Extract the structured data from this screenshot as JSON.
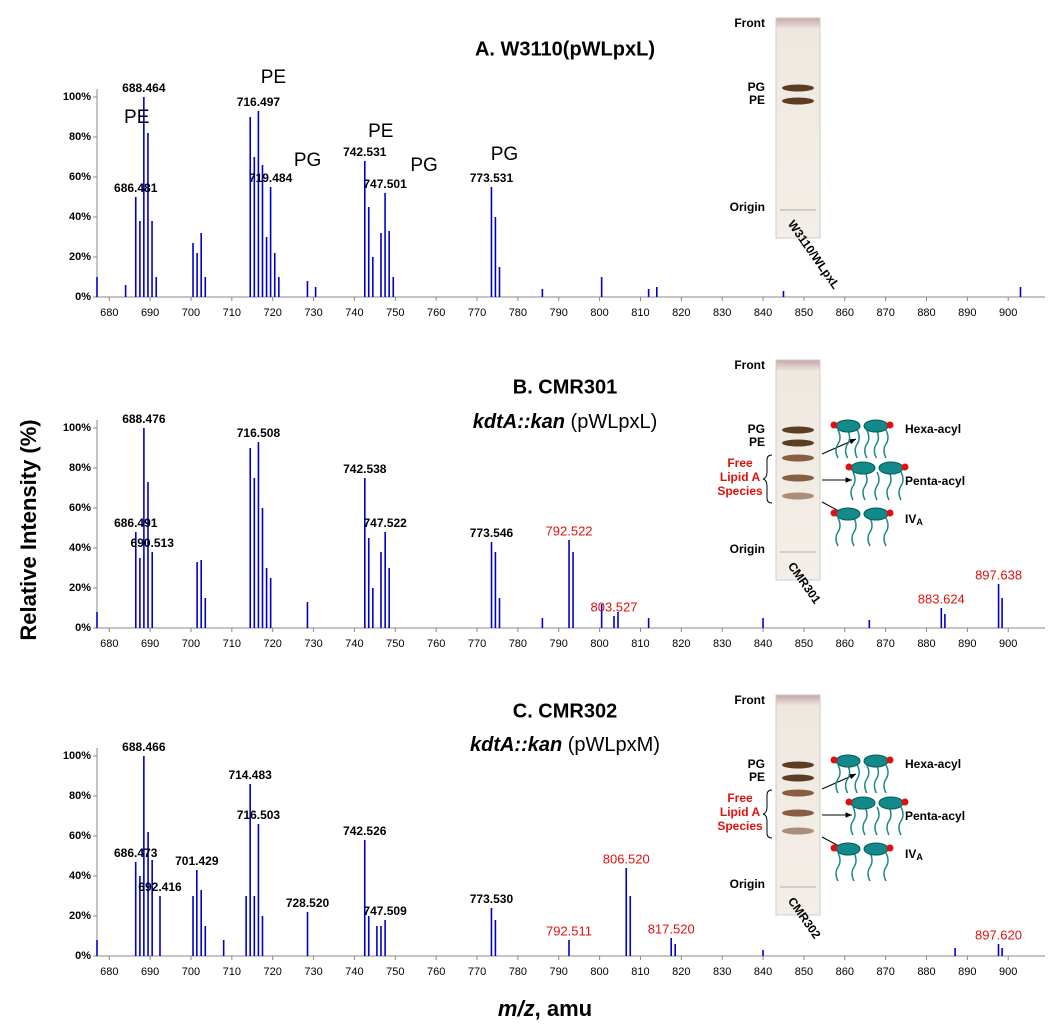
{
  "ylabel": "Relative Intensity (%)",
  "xlabel": [
    "m/z",
    ", amu"
  ],
  "chart_data": [
    {
      "type": "stick",
      "title": "A. W3110(pWLpxL)",
      "color": "#0000cc",
      "xlim": [
        677,
        909
      ],
      "xticks": [
        680,
        690,
        700,
        710,
        720,
        730,
        740,
        750,
        760,
        770,
        780,
        790,
        800,
        810,
        820,
        830,
        840,
        850,
        860,
        870,
        880,
        890,
        900
      ],
      "ylim": [
        0,
        104
      ],
      "yticks": [
        {
          "value": 0,
          "label": "0%"
        },
        {
          "value": 20,
          "label": "20%"
        },
        {
          "value": 40,
          "label": "40%"
        },
        {
          "value": 60,
          "label": "60%"
        },
        {
          "value": 80,
          "label": "80%"
        },
        {
          "value": 100,
          "label": "100%"
        }
      ],
      "x": [
        677,
        684,
        686.481,
        687.5,
        688.464,
        689.47,
        690.47,
        691.5,
        700.5,
        701.5,
        702.5,
        703.5,
        714.5,
        715.5,
        716.497,
        717.5,
        718.5,
        719.484,
        720.5,
        721.5,
        728.5,
        730.5,
        742.531,
        743.5,
        744.5,
        746.5,
        747.501,
        748.5,
        749.5,
        773.531,
        774.5,
        775.5,
        786,
        800.5,
        812,
        814,
        845,
        903
      ],
      "values": [
        10,
        6,
        50,
        38,
        100,
        82,
        38,
        10,
        27,
        22,
        32,
        10,
        90,
        70,
        93,
        66,
        30,
        55,
        22,
        10,
        8,
        5,
        68,
        45,
        20,
        32,
        52,
        33,
        10,
        55,
        40,
        15,
        4,
        10,
        4,
        5,
        3,
        5
      ],
      "peak_labels": [
        {
          "peak": 2,
          "label": "686.481"
        },
        {
          "peak": 4,
          "label": "688.464"
        },
        {
          "peak": 14,
          "label": "716.497"
        },
        {
          "peak": 17,
          "label": "719.484"
        },
        {
          "peak": 22,
          "label": "742.531"
        },
        {
          "peak": 26,
          "label": "747.501"
        },
        {
          "peak": 29,
          "label": "773.531"
        }
      ],
      "annotations": [
        {
          "text": "PE",
          "peak": 2
        },
        {
          "text": "PE",
          "peak": 14
        },
        {
          "text": "PG",
          "peak": 17
        },
        {
          "text": "PE",
          "peak": 22
        },
        {
          "text": "PG",
          "peak": 26
        },
        {
          "text": "PG",
          "peak": 29
        }
      ],
      "inset": {
        "front": "Front",
        "bands": [
          "PG",
          "PE"
        ],
        "origin": "Origin",
        "lane": "W3110/WLpxL"
      }
    },
    {
      "type": "stick",
      "title": "B. CMR301",
      "subtitle": [
        "kdtA::kan",
        " (pWLpxL)"
      ],
      "color": "#0000cc",
      "xlim": [
        677,
        909
      ],
      "xticks": [
        680,
        690,
        700,
        710,
        720,
        730,
        740,
        750,
        760,
        770,
        780,
        790,
        800,
        810,
        820,
        830,
        840,
        850,
        860,
        870,
        880,
        890,
        900
      ],
      "ylim": [
        0,
        104
      ],
      "yticks": [
        {
          "value": 0,
          "label": "0%"
        },
        {
          "value": 20,
          "label": "20%"
        },
        {
          "value": 40,
          "label": "40%"
        },
        {
          "value": 60,
          "label": "60%"
        },
        {
          "value": 80,
          "label": "80%"
        },
        {
          "value": 100,
          "label": "100%"
        }
      ],
      "x": [
        677,
        686.491,
        687.5,
        688.476,
        689.48,
        690.513,
        701.5,
        702.5,
        703.5,
        714.5,
        715.5,
        716.508,
        717.5,
        718.5,
        719.5,
        728.5,
        742.538,
        743.5,
        744.5,
        746.5,
        747.522,
        748.5,
        773.546,
        774.5,
        775.5,
        786,
        792.522,
        793.5,
        800.5,
        803.527,
        804.5,
        812,
        840,
        866,
        883.624,
        884.5,
        897.638,
        898.5
      ],
      "values": [
        8,
        48,
        35,
        100,
        73,
        38,
        33,
        34,
        15,
        90,
        75,
        93,
        60,
        30,
        25,
        13,
        75,
        45,
        20,
        38,
        48,
        30,
        43,
        38,
        15,
        5,
        44,
        38,
        12,
        6,
        8,
        5,
        5,
        4,
        10,
        7,
        22,
        15
      ],
      "peak_labels": [
        {
          "peak": 1,
          "label": "686.491"
        },
        {
          "peak": 3,
          "label": "688.476"
        },
        {
          "peak": 5,
          "label": "690.513"
        },
        {
          "peak": 11,
          "label": "716.508"
        },
        {
          "peak": 16,
          "label": "742.538"
        },
        {
          "peak": 20,
          "label": "747.522"
        },
        {
          "peak": 22,
          "label": "773.546"
        },
        {
          "peak": 26,
          "label": "792.522"
        },
        {
          "peak": 29,
          "label": "803.527"
        },
        {
          "peak": 34,
          "label": "883.624"
        },
        {
          "peak": 36,
          "label": "897.638"
        }
      ],
      "highlight": {
        "color": "#e01010",
        "peaks": [
          26,
          29,
          34,
          36
        ]
      },
      "inset": {
        "front": "Front",
        "bands": [
          "PG",
          "PE"
        ],
        "species": [
          "Free",
          "Lipid A",
          "Species"
        ],
        "origin": "Origin",
        "lane": "CMR301",
        "molecules": [
          "Hexa-acyl",
          "Penta-acyl",
          [
            "IV",
            "A"
          ]
        ]
      }
    },
    {
      "type": "stick",
      "title": "C. CMR302",
      "subtitle": [
        "kdtA::kan",
        " (pWLpxM)"
      ],
      "color": "#0000cc",
      "xlim": [
        677,
        909
      ],
      "xticks": [
        680,
        690,
        700,
        710,
        720,
        730,
        740,
        750,
        760,
        770,
        780,
        790,
        800,
        810,
        820,
        830,
        840,
        850,
        860,
        870,
        880,
        890,
        900
      ],
      "ylim": [
        0,
        104
      ],
      "yticks": [
        {
          "value": 0,
          "label": "0%"
        },
        {
          "value": 20,
          "label": "20%"
        },
        {
          "value": 40,
          "label": "40%"
        },
        {
          "value": 60,
          "label": "60%"
        },
        {
          "value": 80,
          "label": "80%"
        },
        {
          "value": 100,
          "label": "100%"
        }
      ],
      "x": [
        677,
        686.473,
        687.5,
        688.466,
        689.5,
        690.5,
        692.416,
        700.5,
        701.429,
        702.5,
        703.5,
        708,
        713.5,
        714.483,
        715.5,
        716.503,
        717.5,
        728.52,
        742.526,
        743.5,
        745.5,
        746.5,
        747.509,
        773.53,
        774.5,
        792.511,
        806.52,
        807.5,
        817.52,
        818.5,
        840,
        887,
        897.62,
        898.5
      ],
      "values": [
        8,
        47,
        40,
        100,
        62,
        48,
        30,
        30,
        43,
        33,
        15,
        8,
        30,
        86,
        30,
        66,
        20,
        22,
        58,
        20,
        15,
        15,
        18,
        24,
        18,
        8,
        44,
        30,
        9,
        6,
        3,
        4,
        6,
        4
      ],
      "peak_labels": [
        {
          "peak": 1,
          "label": "686.473"
        },
        {
          "peak": 3,
          "label": "688.466"
        },
        {
          "peak": 6,
          "label": "692.416"
        },
        {
          "peak": 8,
          "label": "701.429"
        },
        {
          "peak": 13,
          "label": "714.483"
        },
        {
          "peak": 15,
          "label": "716.503"
        },
        {
          "peak": 17,
          "label": "728.520"
        },
        {
          "peak": 18,
          "label": "742.526"
        },
        {
          "peak": 22,
          "label": "747.509"
        },
        {
          "peak": 23,
          "label": "773.530"
        },
        {
          "peak": 25,
          "label": "792.511"
        },
        {
          "peak": 26,
          "label": "806.520"
        },
        {
          "peak": 28,
          "label": "817.520"
        },
        {
          "peak": 32,
          "label": "897.620"
        }
      ],
      "highlight": {
        "color": "#e01010",
        "peaks": [
          25,
          26,
          28,
          32
        ]
      },
      "inset": {
        "front": "Front",
        "bands": [
          "PG",
          "PE"
        ],
        "species": [
          "Free",
          "Lipid A",
          "Species"
        ],
        "origin": "Origin",
        "lane": "CMR302",
        "molecules": [
          "Hexa-acyl",
          "Penta-acyl",
          [
            "IV",
            "A"
          ]
        ]
      }
    }
  ]
}
